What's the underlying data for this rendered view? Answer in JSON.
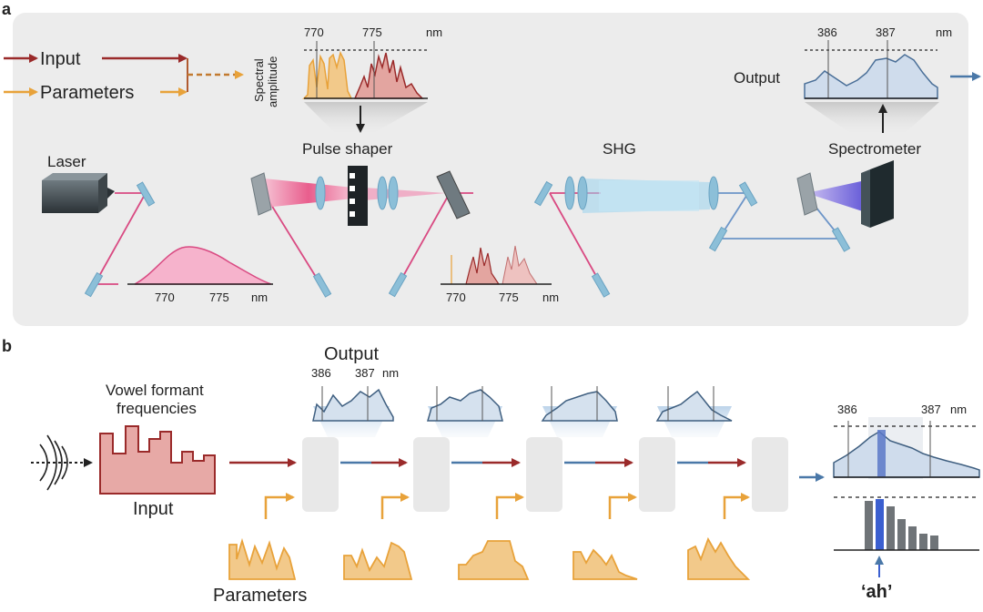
{
  "panel_a": {
    "letter": "a",
    "legend": {
      "input": "Input",
      "parameters": "Parameters"
    },
    "spectral_axis": {
      "line1": "Spectral",
      "line2": "amplitude"
    },
    "top_ticks": [
      "770",
      "775"
    ],
    "unit": "nm",
    "output_label": "Output",
    "output_ticks": [
      "386",
      "387"
    ],
    "component_labels": {
      "laser": "Laser",
      "pulse_shaper": "Pulse shaper",
      "shg": "SHG",
      "spectrometer": "Spectrometer"
    },
    "bottom_ticks_left": [
      "770",
      "775"
    ],
    "bottom_ticks_mid": [
      "770",
      "775"
    ]
  },
  "panel_b": {
    "letter": "b",
    "output_title": "Output",
    "output_ticks": [
      "386",
      "387"
    ],
    "unit": "nm",
    "vowel_label_line1": "Vowel formant",
    "vowel_label_line2": "frequencies",
    "input_label": "Input",
    "parameters_label": "Parameters",
    "final_ticks": [
      "386",
      "387"
    ],
    "vowel_result": "‘ah’"
  },
  "colors": {
    "input": "#9a2a2a",
    "parameters": "#e8a23a",
    "output": "#4a78a8",
    "laser_beam": "#e0447a",
    "shg_beam": "#9bd3ee",
    "panel_bg": "#ececec"
  }
}
